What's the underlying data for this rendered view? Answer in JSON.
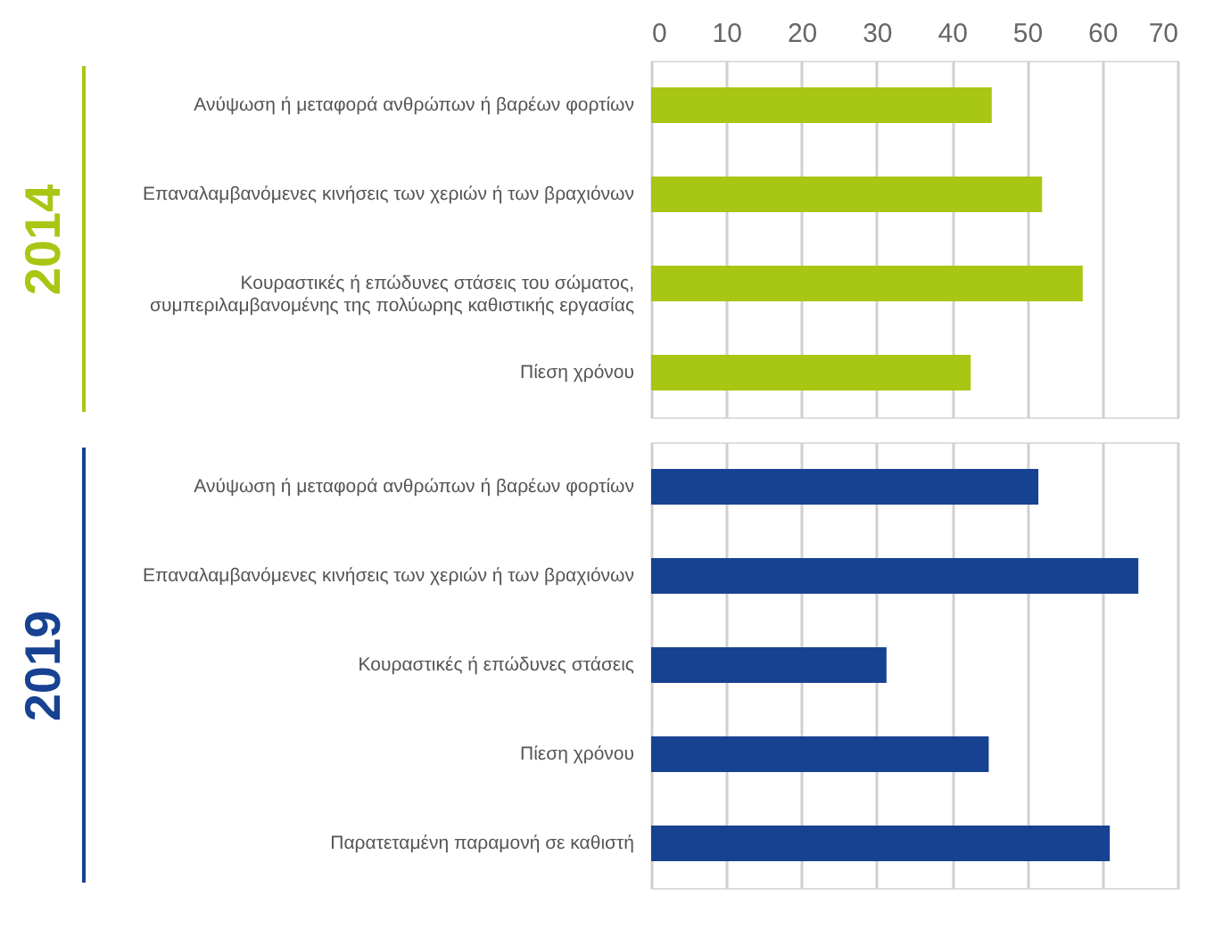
{
  "chart_data": [
    {
      "type": "bar",
      "orientation": "horizontal",
      "ylabel": "2014",
      "color": "#a8c614",
      "categories": [
        "Ανύψωση ή μεταφορά ανθρώπων ή βαρέων φορτίων",
        "Επαναλαμβανόμενες κινήσεις των χεριών ή των βραχιόνων",
        "Κουραστικές ή επώδυνες στάσεις του σώματος,\nσυμπεριλαμβανομένης της πολύωρης καθιστικής εργασίας",
        "Πίεση χρόνου"
      ],
      "values": [
        45.3,
        52.0,
        57.4,
        42.5
      ],
      "xlim": [
        0,
        70
      ],
      "xticks": [
        0,
        10,
        20,
        30,
        40,
        50,
        60,
        70
      ],
      "grid": "x"
    },
    {
      "type": "bar",
      "orientation": "horizontal",
      "ylabel": "2019",
      "color": "#174291",
      "categories": [
        "Ανύψωση ή μεταφορά ανθρώπων ή βαρέων φορτίων",
        "Επαναλαμβανόμενες κινήσεις των χεριών ή των βραχιόνων",
        "Κουραστικές ή επώδυνες στάσεις",
        "Πίεση χρόνου",
        "Παρατεταμένη παραμονή σε καθιστή"
      ],
      "values": [
        51.5,
        64.8,
        31.3,
        44.9,
        61.0
      ],
      "xlim": [
        0,
        70
      ],
      "xticks": [
        0,
        10,
        20,
        30,
        40,
        50,
        60,
        70
      ],
      "grid": "x",
      "tick_labels": "y"
    }
  ]
}
